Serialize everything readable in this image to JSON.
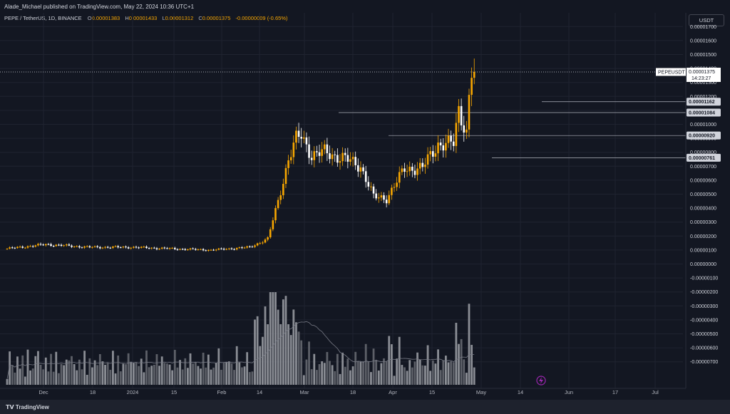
{
  "header": {
    "publisher": "Alade_Michael published on TradingView.com, May 22, 2024 10:36 UTC+1"
  },
  "legend": {
    "symbol": "PEPE / TetherUS, 1D, BINANCE",
    "o_label": "O",
    "o": "0.00001383",
    "h_label": "H",
    "h": "0.00001433",
    "l_label": "L",
    "l": "0.00001312",
    "c_label": "C",
    "c": "0.00001375",
    "change": "-0.00000009 (-0.65%)"
  },
  "currency": "USDT",
  "footer": {
    "brand": "TradingView"
  },
  "colors": {
    "up": "#f7a600",
    "down": "#ffffff",
    "background": "#131722",
    "grid": "#1f2330"
  },
  "chart_data": {
    "type": "candlestick",
    "y_ticks": [
      "0.00001700",
      "0.00001600",
      "0.00001500",
      "0.00001400",
      "0.00001300",
      "0.00001200",
      "0.00001100",
      "0.00001000",
      "0.00000900",
      "0.00000800",
      "0.00000700",
      "0.00000600",
      "0.00000500",
      "0.00000400",
      "0.00000300",
      "0.00000200",
      "0.00000100",
      "0.00000000",
      "-0.00000100",
      "-0.00000200",
      "-0.00000300",
      "-0.00000400",
      "-0.00000500",
      "-0.00000600",
      "-0.00000700"
    ],
    "x_ticks": [
      "Dec",
      "18",
      "2024",
      "15",
      "Feb",
      "14",
      "Mar",
      "18",
      "Apr",
      "15",
      "May",
      "14",
      "Jun",
      "17",
      "Jul"
    ],
    "last_price_label": {
      "symbol": "PEPEUSDT",
      "price": "0.00001375",
      "countdown": "14:23:27"
    },
    "horizontal_levels": [
      {
        "value": 1.162e-05,
        "label": "0.00001162"
      },
      {
        "value": 1.084e-05,
        "label": "0.00001084"
      },
      {
        "value": 9.2e-06,
        "label": "0.00000920"
      },
      {
        "value": 7.61e-06,
        "label": "0.00000761"
      }
    ],
    "price_path": [
      [
        "2023-11-23",
        1.1e-06
      ],
      [
        "2023-12-08",
        1.4e-06
      ],
      [
        "2023-12-25",
        1.2e-06
      ],
      [
        "2024-01-10",
        1.2e-06
      ],
      [
        "2024-01-25",
        1.1e-06
      ],
      [
        "2024-02-10",
        1e-06
      ],
      [
        "2024-02-25",
        1.2e-06
      ],
      [
        "2024-03-03",
        1.8e-06
      ],
      [
        "2024-03-07",
        4.5e-06
      ],
      [
        "2024-03-11",
        7.5e-06
      ],
      [
        "2024-03-14",
        8.9e-06
      ],
      [
        "2024-03-16",
        9.2e-06
      ],
      [
        "2024-03-20",
        7.8e-06
      ],
      [
        "2024-03-25",
        8e-06
      ],
      [
        "2024-04-01",
        7.6e-06
      ],
      [
        "2024-04-08",
        7e-06
      ],
      [
        "2024-04-13",
        4.8e-06
      ],
      [
        "2024-04-18",
        4.7e-06
      ],
      [
        "2024-04-25",
        6.8e-06
      ],
      [
        "2024-05-02",
        6.9e-06
      ],
      [
        "2024-05-08",
        8.6e-06
      ],
      [
        "2024-05-14",
        8.6e-06
      ],
      [
        "2024-05-16",
        1.1e-05
      ],
      [
        "2024-05-19",
        9.5e-06
      ],
      [
        "2024-05-20",
        1.2e-05
      ],
      [
        "2024-05-21",
        1.38e-05
      ],
      [
        "2024-05-22",
        1.375e-05
      ]
    ]
  }
}
